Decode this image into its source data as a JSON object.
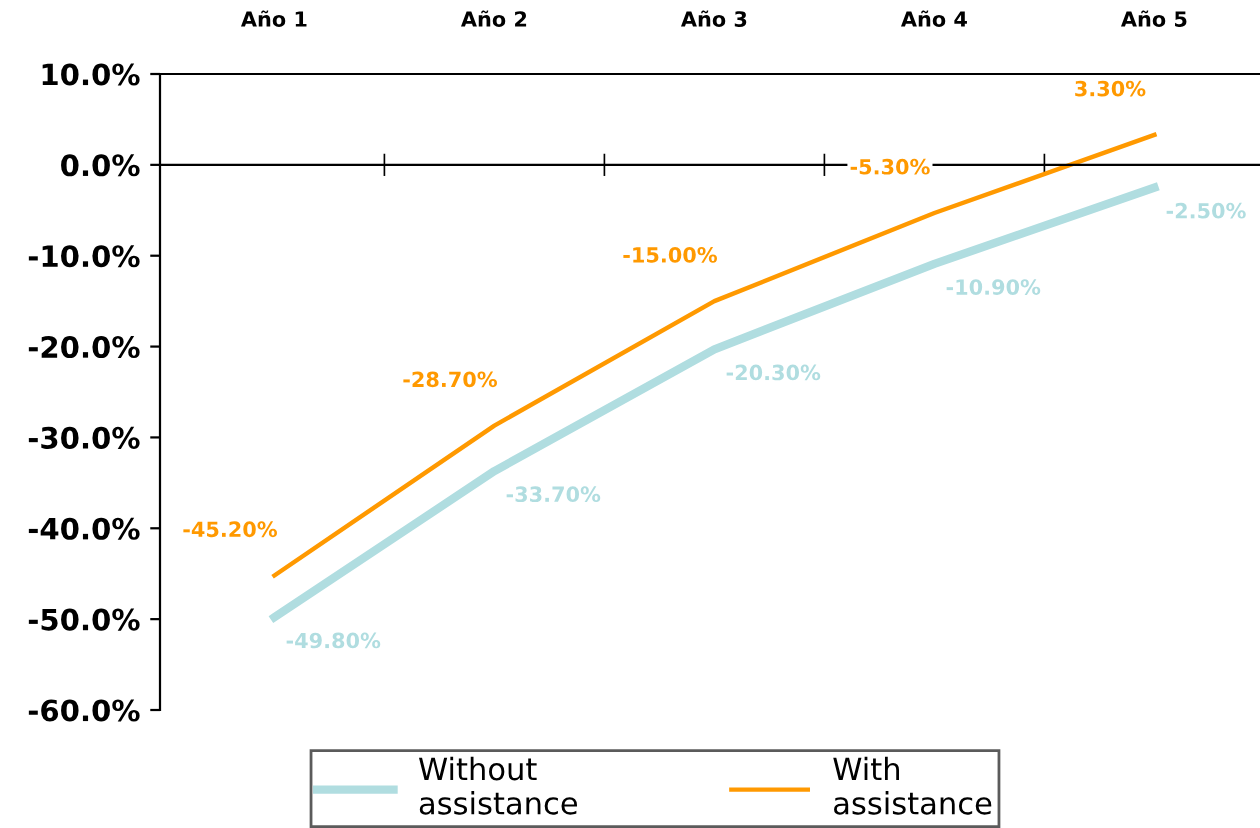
{
  "chart_data": {
    "type": "line",
    "categories": [
      "Año 1",
      "Año 2",
      "Año 3",
      "Año 4",
      "Año 5"
    ],
    "series": [
      {
        "name": "Without assistance",
        "color": "#b0dde0",
        "values": [
          -49.8,
          -33.7,
          -20.3,
          -10.9,
          -2.5
        ]
      },
      {
        "name": "With assistance",
        "color": "#ff9900",
        "values": [
          -45.2,
          -28.7,
          -15.0,
          -5.3,
          3.3
        ]
      }
    ],
    "ylim": [
      -60,
      10
    ],
    "yticks": [
      {
        "value": -60,
        "label": "-60.0%"
      },
      {
        "value": -50,
        "label": "-50.0%"
      },
      {
        "value": -40,
        "label": "-40.0%"
      },
      {
        "value": -30,
        "label": "-30.0%"
      },
      {
        "value": -20,
        "label": "-20.0%"
      },
      {
        "value": -10,
        "label": "-10.0%"
      },
      {
        "value": 0,
        "label": "0.0%"
      },
      {
        "value": 10,
        "label": "10.0%"
      }
    ],
    "value_labels": [
      [
        "-49.80%",
        "-33.70%",
        "-20.30%",
        "-10.90%",
        "-2.50%"
      ],
      [
        "-45.20%",
        "-28.70%",
        "-15.00%",
        "-5.30%",
        "3.30%"
      ]
    ],
    "legend": "bottom",
    "marker": "none",
    "line_style": "solid"
  }
}
